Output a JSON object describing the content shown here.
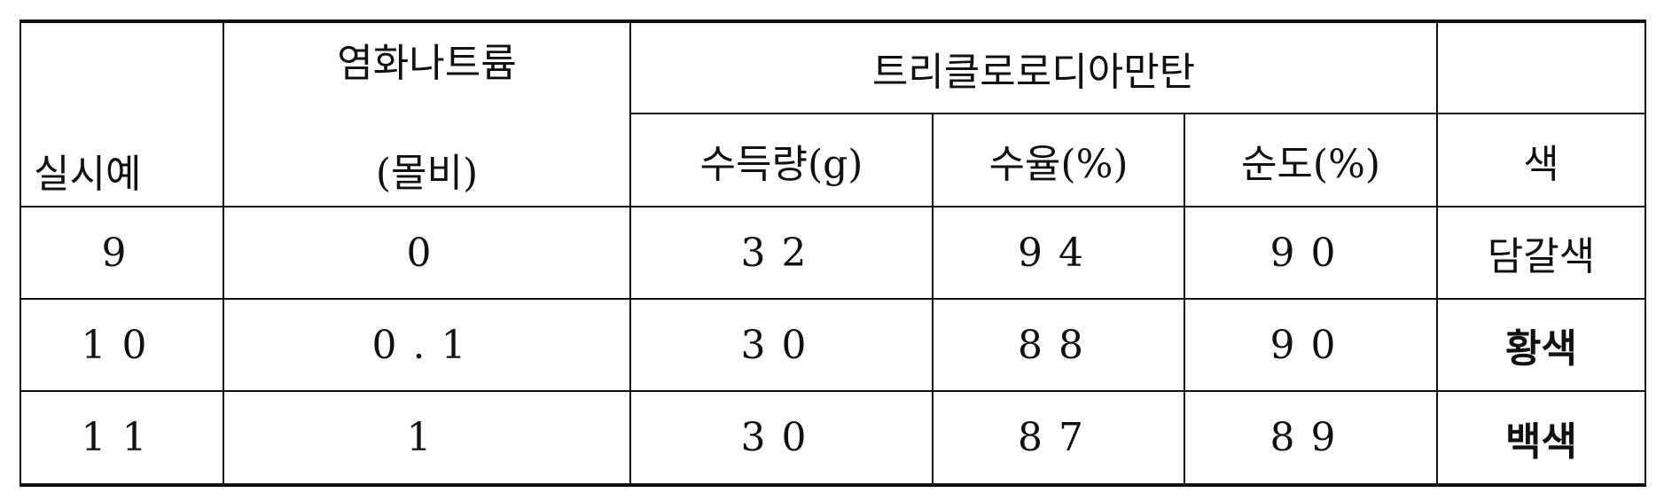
{
  "table": {
    "headers": {
      "example": "실시예",
      "sodium_chloride": "염화나트륨",
      "sodium_chloride_unit": "(몰비)",
      "product": "트리클로로디아만탄",
      "yield_g": "수득량(g)",
      "yield_pct": "수율(%)",
      "purity_pct": "순도(%)",
      "color": "색"
    },
    "rows": [
      {
        "example": "9",
        "nacl": "0",
        "yield_g": "32",
        "yield_pct": "94",
        "purity": "90",
        "color": "담갈색"
      },
      {
        "example": "10",
        "nacl": "0.1",
        "yield_g": "30",
        "yield_pct": "88",
        "purity": "90",
        "color": "황색"
      },
      {
        "example": "11",
        "nacl": "1",
        "yield_g": "30",
        "yield_pct": "87",
        "purity": "89",
        "color": "백색"
      }
    ]
  }
}
